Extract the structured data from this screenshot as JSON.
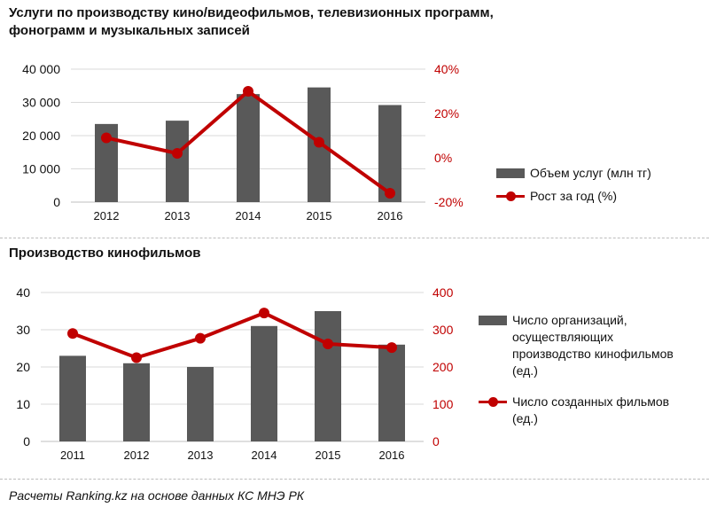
{
  "chart_data": [
    {
      "type": "bar+line",
      "title": "Услуги по производству кино/видеофильмов,  телевизионных программ, фонограмм  и  музыкальных  записей",
      "categories": [
        "2012",
        "2013",
        "2014",
        "2015",
        "2016"
      ],
      "series": [
        {
          "name": "Объем услуг (млн тг)",
          "type": "bar",
          "axis": "left",
          "values": [
            23500,
            24500,
            32500,
            34500,
            29200
          ]
        },
        {
          "name": "Рост за год (%)",
          "type": "line",
          "axis": "right",
          "values": [
            9,
            2,
            30,
            7,
            -16
          ]
        }
      ],
      "left_axis": {
        "min": 0,
        "max": 40000,
        "ticks": [
          0,
          10000,
          20000,
          30000,
          40000
        ],
        "tick_labels": [
          "0",
          "10 000",
          "20 000",
          "30 000",
          "40 000"
        ]
      },
      "right_axis": {
        "min": -20,
        "max": 40,
        "ticks": [
          -20,
          0,
          20,
          40
        ],
        "tick_labels": [
          "-20%",
          "0%",
          "20%",
          "40%"
        ]
      },
      "legend": [
        "Объем услуг (млн тг)",
        "Рост за год (%)"
      ],
      "legend_position": "right"
    },
    {
      "type": "bar+line",
      "title": "Производство  кинофильмов",
      "categories": [
        "2011",
        "2012",
        "2013",
        "2014",
        "2015",
        "2016"
      ],
      "series": [
        {
          "name": "Число организаций, осуществляющих производство кинофильмов (ед.)",
          "type": "bar",
          "axis": "left",
          "values": [
            23,
            21,
            20,
            31,
            35,
            26
          ]
        },
        {
          "name": "Число созданных фильмов (ед.)",
          "type": "line",
          "axis": "right",
          "values": [
            290,
            225,
            277,
            345,
            262,
            252
          ]
        }
      ],
      "left_axis": {
        "min": 0,
        "max": 40,
        "ticks": [
          0,
          10,
          20,
          30,
          40
        ],
        "tick_labels": [
          "0",
          "10",
          "20",
          "30",
          "40"
        ]
      },
      "right_axis": {
        "min": 0,
        "max": 400,
        "ticks": [
          0,
          100,
          200,
          300,
          400
        ],
        "tick_labels": [
          "0",
          "100",
          "200",
          "300",
          "400"
        ]
      },
      "legend": [
        "Число организаций, осуществляющих производство кинофильмов (ед.)",
        "Число созданных фильмов (ед.)"
      ],
      "legend_lines": [
        [
          "Число организаций,",
          "осуществляющих",
          "производство кинофильмов",
          "(ед.)"
        ],
        [
          "Число созданных фильмов",
          "(ед.)"
        ]
      ],
      "legend_position": "right"
    }
  ],
  "colors": {
    "bar": "#595959",
    "line": "#c00000",
    "right_axis_text": "#c00000",
    "grid": "#d9d9d9"
  },
  "footer": "Расчеты Ranking.kz на основе данных КС МНЭ РК"
}
